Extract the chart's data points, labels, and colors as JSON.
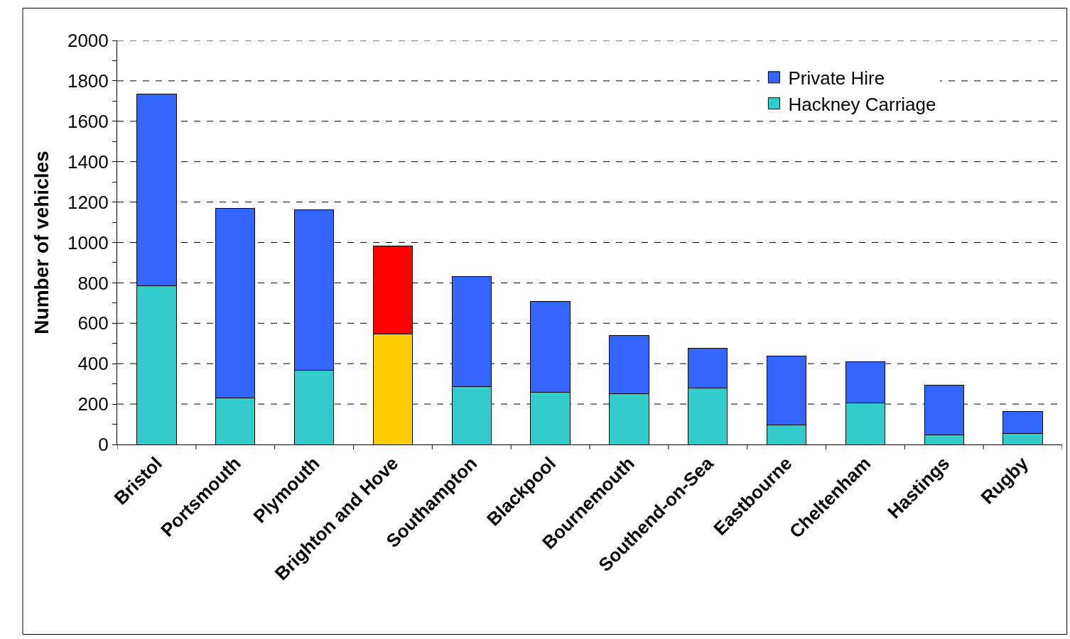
{
  "chart_data": {
    "type": "bar",
    "stacked": true,
    "ylabel": "Number of vehicles",
    "categories": [
      "Bristol",
      "Portsmouth",
      "Plymouth",
      "Brighton and Hove",
      "Southampton",
      "Blackpool",
      "Bournemouth",
      "Southend-on-Sea",
      "Eastbourne",
      "Cheltenham",
      "Hastings",
      "Rugby"
    ],
    "series": [
      {
        "name": "Hackney Carriage",
        "color": "#33cccc",
        "colors": [
          "#33cccc",
          "#33cccc",
          "#33cccc",
          "#ffcc00",
          "#33cccc",
          "#33cccc",
          "#33cccc",
          "#33cccc",
          "#33cccc",
          "#33cccc",
          "#33cccc",
          "#33cccc"
        ],
        "values": [
          787,
          232,
          369,
          548,
          285,
          257,
          250,
          278,
          98,
          204,
          46,
          53
        ]
      },
      {
        "name": "Private Hire",
        "color": "#3366ff",
        "colors": [
          "#3366ff",
          "#3366ff",
          "#3366ff",
          "#ff0000",
          "#3366ff",
          "#3366ff",
          "#3366ff",
          "#3366ff",
          "#3366ff",
          "#3366ff",
          "#3366ff",
          "#3366ff"
        ],
        "values": [
          946,
          938,
          794,
          436,
          548,
          450,
          288,
          197,
          338,
          204,
          249,
          109
        ]
      }
    ],
    "ylim": [
      0,
      2000
    ],
    "yticks": [
      0,
      {
        "value": 100,
        "label": null
      },
      200,
      {
        "value": 300,
        "label": null
      },
      400,
      {
        "value": 500,
        "label": null
      },
      600,
      {
        "value": 700,
        "label": null
      },
      800,
      {
        "value": 900,
        "label": null
      },
      1000,
      {
        "value": 1100,
        "label": null
      },
      1200,
      {
        "value": 1300,
        "label": null
      },
      1400,
      {
        "value": 1500,
        "label": null
      },
      1600,
      {
        "value": 1700,
        "label": null
      },
      1800,
      {
        "value": 1900,
        "label": null
      },
      2000
    ],
    "grid": "y",
    "legend": "top right"
  }
}
